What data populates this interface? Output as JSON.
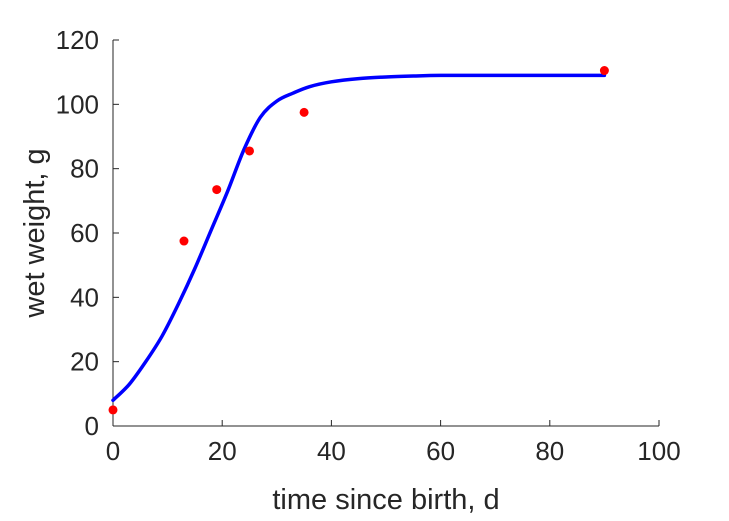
{
  "chart_data": {
    "type": "scatter",
    "title": "",
    "xlabel": "time since birth, d",
    "ylabel": "wet weight, g",
    "xlim": [
      0,
      100
    ],
    "ylim": [
      0,
      120
    ],
    "xticks": [
      "0",
      "20",
      "40",
      "60",
      "80",
      "100"
    ],
    "yticks": [
      "0",
      "20",
      "40",
      "60",
      "80",
      "100",
      "120"
    ],
    "grid": false,
    "legend": "none",
    "series": [
      {
        "kind": "points",
        "color": "#ff0000",
        "x": [
          0,
          13,
          19,
          25,
          35,
          90
        ],
        "y": [
          5,
          57.5,
          73.5,
          85.5,
          97.5,
          110.5
        ]
      },
      {
        "kind": "line",
        "color": "#0000ff",
        "x": [
          0,
          3,
          6,
          9,
          12,
          15,
          18,
          21,
          24,
          27,
          30,
          33,
          36,
          40,
          45,
          50,
          55,
          60,
          70,
          80,
          90
        ],
        "y": [
          8,
          13,
          20,
          28,
          38,
          49,
          61,
          73,
          86,
          96,
          101,
          103.5,
          105.5,
          107,
          108,
          108.5,
          108.8,
          109,
          109,
          109,
          109
        ]
      }
    ]
  }
}
